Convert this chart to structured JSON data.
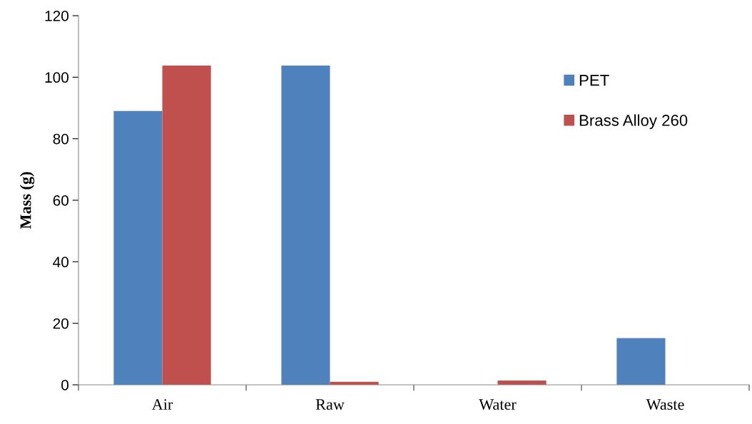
{
  "chart_data": {
    "type": "bar",
    "ylabel": "Mass (g)",
    "categories": [
      "Air",
      "Raw",
      "Water",
      "Waste"
    ],
    "series": [
      {
        "name": "PET",
        "color": "#4f81bd",
        "values": [
          89,
          103.8,
          0,
          15.2
        ]
      },
      {
        "name": "Brass Alloy 260",
        "color": "#c0504d",
        "values": [
          103.8,
          1,
          1.4,
          0
        ]
      }
    ],
    "ylim": [
      0,
      120
    ],
    "yticks": [
      0,
      20,
      40,
      60,
      80,
      100,
      120
    ],
    "grid": false,
    "legend": "top right"
  }
}
